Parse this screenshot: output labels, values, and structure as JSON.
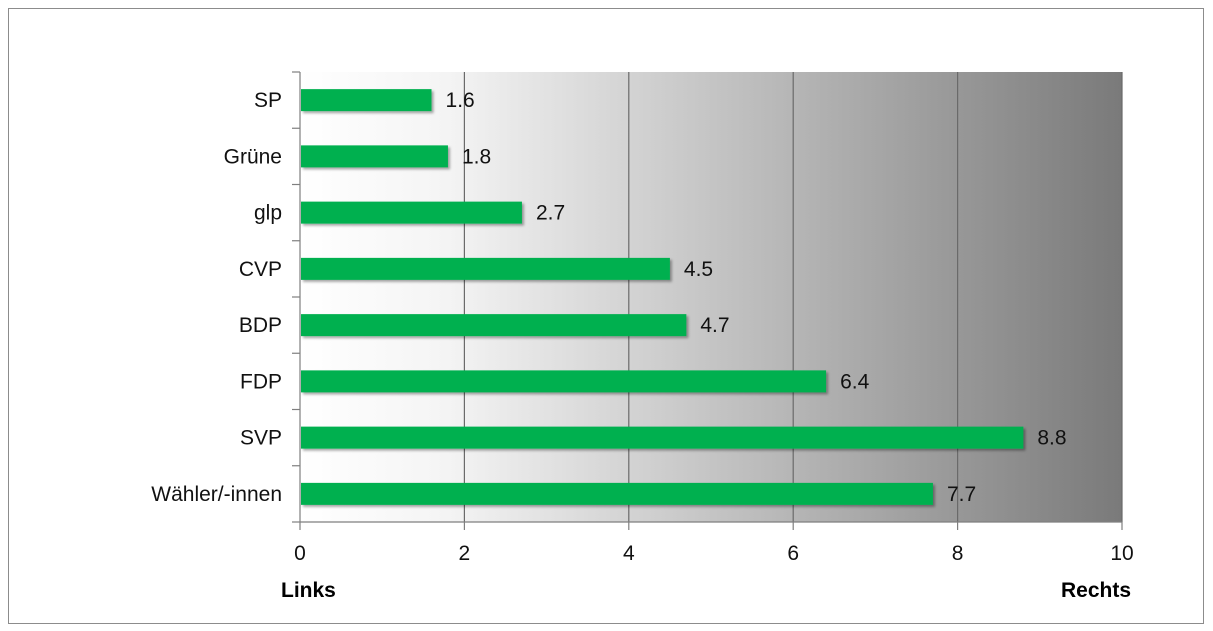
{
  "chart_data": {
    "type": "bar",
    "orientation": "horizontal",
    "categories": [
      "SP",
      "Grüne",
      "glp",
      "CVP",
      "BDP",
      "FDP",
      "SVP",
      "Wähler/-innen"
    ],
    "values": [
      1.6,
      1.8,
      2.7,
      4.5,
      4.7,
      6.4,
      8.8,
      7.7
    ],
    "xlim": [
      0,
      10
    ],
    "xticks": [
      "0",
      "2",
      "4",
      "6",
      "8",
      "10"
    ],
    "scale_left_label": "Links",
    "scale_right_label": "Rechts",
    "grid": "vertical",
    "background": "gradient white to gray (left to right)",
    "bar_color": "#00b050",
    "legend": "none"
  }
}
